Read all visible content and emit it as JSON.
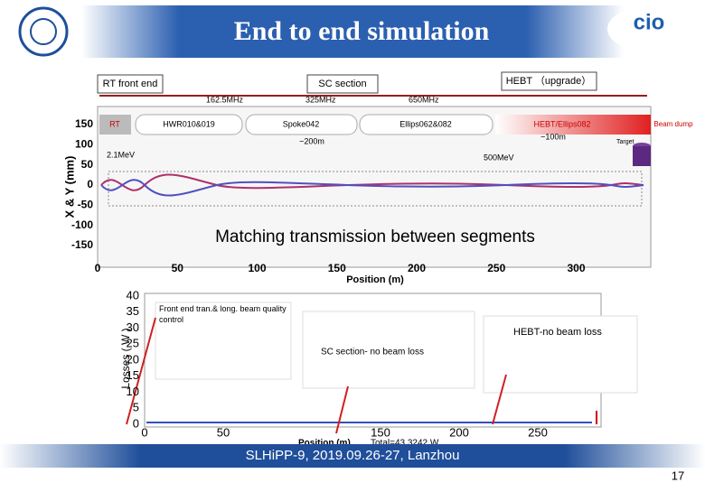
{
  "header": {
    "title": "End to end simulation"
  },
  "sections": [
    "RT front end",
    "SC section",
    "HEBT （upgrade）"
  ],
  "frequencies": [
    "162.5MHz",
    "325MHz",
    "650MHz"
  ],
  "segments": [
    "RT",
    "HWR010&019",
    "Spoke042",
    "Ellips062&082",
    "HEBT/Ellips082",
    "Beam dump"
  ],
  "notes": {
    "sc_length": "~200m",
    "hebt_length": "~100m",
    "energy_sc_in": "2.1MeV",
    "energy_out": "500MeV",
    "target": "Target"
  },
  "envelope_plot": {
    "y_label": "X & Y (mm)",
    "x_label": "Position (m)",
    "yticks": [
      150,
      100,
      50,
      0,
      -50,
      -100,
      -150
    ],
    "xticks": [
      0,
      50,
      100,
      150,
      200,
      250,
      300
    ]
  },
  "headline": "Matching transmission between segments",
  "loss_plot": {
    "y_label": "Losses ( W )",
    "x_label": "Position (m)",
    "total": "Total=43.3242 W",
    "yticks": [
      40,
      35,
      30,
      25,
      20,
      15,
      10,
      5,
      0
    ],
    "xticks": [
      0,
      50,
      150,
      200,
      250
    ]
  },
  "annotations": [
    "Front end tran.& long. beam quality control",
    "SC section- no beam loss",
    "HEBT-no beam loss"
  ],
  "footer": {
    "text": "SLHiPP-9, 2019.09.26-27, Lanzhou",
    "page": "17"
  }
}
